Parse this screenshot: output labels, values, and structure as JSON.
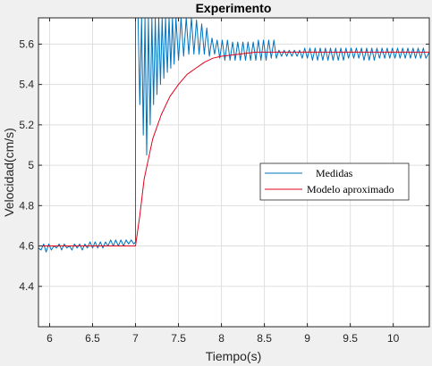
{
  "chart_data": {
    "type": "line",
    "title": "Experimento",
    "xlabel": "Tiempo(s)",
    "ylabel": "Velocidad(cm/s)",
    "xlim": [
      5.87,
      10.42
    ],
    "ylim": [
      4.2,
      5.73
    ],
    "xticks": [
      6,
      6.5,
      7,
      7.5,
      8,
      8.5,
      9,
      9.5,
      10
    ],
    "xtick_labels": [
      "6",
      "6.5",
      "7",
      "7.5",
      "8",
      "8.5",
      "9",
      "9.5",
      "10"
    ],
    "yticks": [
      4.4,
      4.6,
      4.8,
      5.0,
      5.2,
      5.4,
      5.6
    ],
    "ytick_labels": [
      "4.4",
      "4.6",
      "4.8",
      "5",
      "5.2",
      "5.4",
      "5.6"
    ],
    "grid": true,
    "legend": "center-right",
    "step_time": 7.0,
    "initial_value": 4.6,
    "final_value": 5.56,
    "series": [
      {
        "name": "Medidas",
        "color": "#0072bd",
        "points": [
          [
            5.87,
            4.59
          ],
          [
            5.9,
            4.58
          ],
          [
            5.93,
            4.61
          ],
          [
            5.96,
            4.57
          ],
          [
            5.99,
            4.61
          ],
          [
            6.02,
            4.58
          ],
          [
            6.05,
            4.6
          ],
          [
            6.08,
            4.59
          ],
          [
            6.11,
            4.61
          ],
          [
            6.14,
            4.58
          ],
          [
            6.17,
            4.61
          ],
          [
            6.2,
            4.59
          ],
          [
            6.23,
            4.6
          ],
          [
            6.26,
            4.58
          ],
          [
            6.29,
            4.61
          ],
          [
            6.32,
            4.59
          ],
          [
            6.35,
            4.61
          ],
          [
            6.38,
            4.58
          ],
          [
            6.41,
            4.61
          ],
          [
            6.44,
            4.59
          ],
          [
            6.47,
            4.62
          ],
          [
            6.5,
            4.59
          ],
          [
            6.53,
            4.62
          ],
          [
            6.56,
            4.59
          ],
          [
            6.59,
            4.62
          ],
          [
            6.62,
            4.59
          ],
          [
            6.65,
            4.62
          ],
          [
            6.68,
            4.6
          ],
          [
            6.71,
            4.63
          ],
          [
            6.74,
            4.6
          ],
          [
            6.77,
            4.63
          ],
          [
            6.8,
            4.6
          ],
          [
            6.83,
            4.63
          ],
          [
            6.86,
            4.6
          ],
          [
            6.89,
            4.63
          ],
          [
            6.92,
            4.61
          ],
          [
            6.95,
            4.63
          ],
          [
            6.98,
            4.61
          ],
          [
            7.0,
            4.62
          ],
          [
            7.0,
            5.73
          ],
          [
            7.03,
            5.73
          ],
          [
            7.05,
            5.3
          ],
          [
            7.07,
            5.73
          ],
          [
            7.09,
            5.15
          ],
          [
            7.11,
            5.73
          ],
          [
            7.13,
            5.05
          ],
          [
            7.15,
            5.73
          ],
          [
            7.17,
            5.2
          ],
          [
            7.19,
            5.73
          ],
          [
            7.21,
            5.3
          ],
          [
            7.23,
            5.73
          ],
          [
            7.25,
            5.35
          ],
          [
            7.27,
            5.73
          ],
          [
            7.29,
            5.4
          ],
          [
            7.31,
            5.73
          ],
          [
            7.33,
            5.43
          ],
          [
            7.35,
            5.73
          ],
          [
            7.37,
            5.46
          ],
          [
            7.39,
            5.73
          ],
          [
            7.41,
            5.48
          ],
          [
            7.43,
            5.73
          ],
          [
            7.45,
            5.5
          ],
          [
            7.47,
            5.73
          ],
          [
            7.5,
            5.52
          ],
          [
            7.53,
            5.73
          ],
          [
            7.56,
            5.54
          ],
          [
            7.59,
            5.73
          ],
          [
            7.62,
            5.55
          ],
          [
            7.65,
            5.73
          ],
          [
            7.68,
            5.55
          ],
          [
            7.71,
            5.72
          ],
          [
            7.74,
            5.55
          ],
          [
            7.77,
            5.7
          ],
          [
            7.8,
            5.55
          ],
          [
            7.83,
            5.68
          ],
          [
            7.86,
            5.54
          ],
          [
            7.89,
            5.63
          ],
          [
            7.92,
            5.55
          ],
          [
            7.95,
            5.62
          ],
          [
            7.98,
            5.53
          ],
          [
            8.01,
            5.62
          ],
          [
            8.04,
            5.52
          ],
          [
            8.07,
            5.62
          ],
          [
            8.1,
            5.52
          ],
          [
            8.13,
            5.61
          ],
          [
            8.16,
            5.52
          ],
          [
            8.19,
            5.61
          ],
          [
            8.22,
            5.52
          ],
          [
            8.25,
            5.61
          ],
          [
            8.28,
            5.52
          ],
          [
            8.31,
            5.61
          ],
          [
            8.34,
            5.52
          ],
          [
            8.37,
            5.61
          ],
          [
            8.4,
            5.52
          ],
          [
            8.43,
            5.62
          ],
          [
            8.46,
            5.52
          ],
          [
            8.49,
            5.62
          ],
          [
            8.52,
            5.52
          ],
          [
            8.55,
            5.62
          ],
          [
            8.58,
            5.53
          ],
          [
            8.61,
            5.62
          ],
          [
            8.64,
            5.53
          ],
          [
            8.67,
            5.57
          ],
          [
            8.7,
            5.54
          ],
          [
            8.73,
            5.57
          ],
          [
            8.76,
            5.54
          ],
          [
            8.79,
            5.57
          ],
          [
            8.82,
            5.54
          ],
          [
            8.85,
            5.57
          ],
          [
            8.88,
            5.54
          ],
          [
            8.91,
            5.57
          ],
          [
            8.94,
            5.53
          ],
          [
            8.97,
            5.58
          ],
          [
            9.0,
            5.53
          ],
          [
            9.03,
            5.58
          ],
          [
            9.06,
            5.52
          ],
          [
            9.09,
            5.58
          ],
          [
            9.12,
            5.52
          ],
          [
            9.15,
            5.58
          ],
          [
            9.18,
            5.52
          ],
          [
            9.21,
            5.58
          ],
          [
            9.24,
            5.52
          ],
          [
            9.27,
            5.58
          ],
          [
            9.3,
            5.52
          ],
          [
            9.33,
            5.58
          ],
          [
            9.36,
            5.52
          ],
          [
            9.39,
            5.58
          ],
          [
            9.42,
            5.52
          ],
          [
            9.45,
            5.58
          ],
          [
            9.48,
            5.53
          ],
          [
            9.51,
            5.58
          ],
          [
            9.54,
            5.53
          ],
          [
            9.57,
            5.58
          ],
          [
            9.6,
            5.53
          ],
          [
            9.63,
            5.58
          ],
          [
            9.66,
            5.52
          ],
          [
            9.69,
            5.58
          ],
          [
            9.72,
            5.52
          ],
          [
            9.75,
            5.58
          ],
          [
            9.78,
            5.52
          ],
          [
            9.81,
            5.58
          ],
          [
            9.84,
            5.53
          ],
          [
            9.87,
            5.58
          ],
          [
            9.9,
            5.53
          ],
          [
            9.93,
            5.58
          ],
          [
            9.96,
            5.53
          ],
          [
            9.99,
            5.58
          ],
          [
            10.02,
            5.53
          ],
          [
            10.05,
            5.58
          ],
          [
            10.08,
            5.53
          ],
          [
            10.11,
            5.58
          ],
          [
            10.14,
            5.53
          ],
          [
            10.17,
            5.58
          ],
          [
            10.2,
            5.53
          ],
          [
            10.23,
            5.58
          ],
          [
            10.26,
            5.53
          ],
          [
            10.29,
            5.58
          ],
          [
            10.32,
            5.53
          ],
          [
            10.35,
            5.58
          ],
          [
            10.38,
            5.53
          ],
          [
            10.42,
            5.56
          ]
        ]
      },
      {
        "name": "Modelo aproximado",
        "color": "#e3001b",
        "points": [
          [
            5.87,
            4.6
          ],
          [
            7.0,
            4.6
          ],
          [
            7.05,
            4.75
          ],
          [
            7.1,
            4.93
          ],
          [
            7.15,
            5.03
          ],
          [
            7.2,
            5.13
          ],
          [
            7.3,
            5.25
          ],
          [
            7.4,
            5.34
          ],
          [
            7.5,
            5.4
          ],
          [
            7.6,
            5.45
          ],
          [
            7.7,
            5.48
          ],
          [
            7.8,
            5.51
          ],
          [
            7.9,
            5.53
          ],
          [
            8.0,
            5.54
          ],
          [
            8.2,
            5.55
          ],
          [
            8.4,
            5.56
          ],
          [
            8.7,
            5.56
          ],
          [
            9.2,
            5.56
          ],
          [
            9.7,
            5.56
          ],
          [
            10.42,
            5.56
          ]
        ]
      }
    ]
  }
}
